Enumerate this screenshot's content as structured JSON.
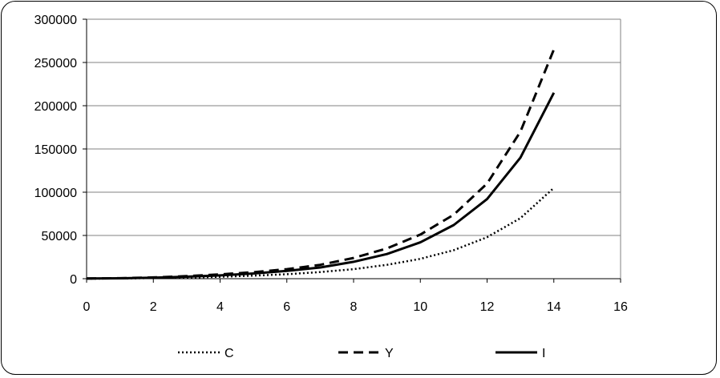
{
  "chart_data": {
    "type": "line",
    "title": "",
    "xlabel": "",
    "ylabel": "",
    "xlim": [
      0,
      16
    ],
    "ylim": [
      0,
      300000
    ],
    "x_ticks": [
      "0",
      "2",
      "4",
      "6",
      "8",
      "10",
      "12",
      "14",
      "16"
    ],
    "y_ticks": [
      "0",
      "50000",
      "100000",
      "150000",
      "200000",
      "250000",
      "300000"
    ],
    "grid": "horizontal",
    "legend_position": "bottom",
    "series": [
      {
        "name": "C",
        "style": "dotted",
        "color": "#000000",
        "x": [
          0,
          1,
          2,
          3,
          4,
          5,
          6,
          7,
          8,
          9,
          10,
          11,
          12,
          13,
          14
        ],
        "values": [
          100,
          300,
          700,
          1300,
          2200,
          3500,
          5200,
          7700,
          11000,
          16000,
          23000,
          33000,
          48000,
          70000,
          105000
        ]
      },
      {
        "name": "Y",
        "style": "dashed",
        "color": "#000000",
        "x": [
          0,
          1,
          2,
          3,
          4,
          5,
          6,
          7,
          8,
          9,
          10,
          11,
          12,
          13,
          14
        ],
        "values": [
          200,
          600,
          1500,
          3000,
          5000,
          7500,
          11000,
          16000,
          24000,
          35000,
          51000,
          74000,
          110000,
          170000,
          265000
        ]
      },
      {
        "name": "I",
        "style": "solid",
        "color": "#000000",
        "x": [
          0,
          1,
          2,
          3,
          4,
          5,
          6,
          7,
          8,
          9,
          10,
          11,
          12,
          13,
          14
        ],
        "values": [
          150,
          500,
          1200,
          2300,
          3800,
          6000,
          9000,
          13000,
          19500,
          28500,
          42000,
          62000,
          92000,
          140000,
          215000
        ]
      }
    ]
  }
}
